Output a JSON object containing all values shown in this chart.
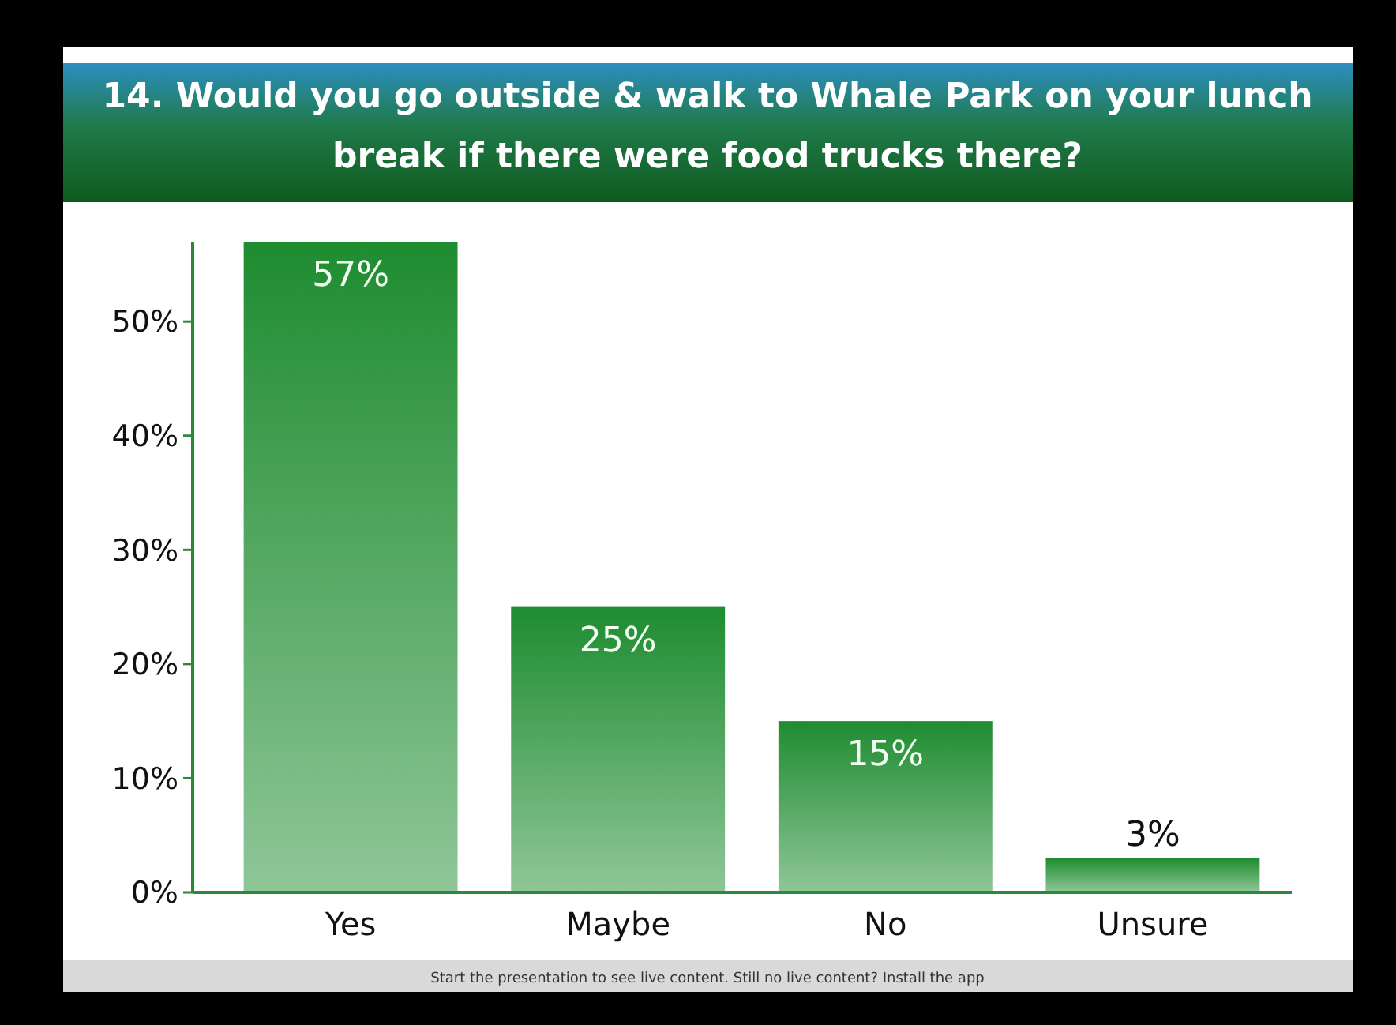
{
  "chart_data": {
    "type": "bar",
    "title": "14. Would you go outside & walk to Whale Park on your lunch break if there were food trucks there?",
    "categories": [
      "Yes",
      "Maybe",
      "No",
      "Unsure"
    ],
    "values": [
      57,
      25,
      15,
      3
    ],
    "value_labels": [
      "57%",
      "25%",
      "15%",
      "3%"
    ],
    "color": "#1e8c30",
    "ylim": [
      0,
      57
    ],
    "yticks": [
      {
        "value": 0,
        "label": "0%"
      },
      {
        "value": 10,
        "label": "10%"
      },
      {
        "value": 20,
        "label": "20%"
      },
      {
        "value": 30,
        "label": "30%"
      },
      {
        "value": 40,
        "label": "40%"
      },
      {
        "value": 50,
        "label": "50%"
      }
    ],
    "grid": false,
    "annotations": [
      "Start the presentation to see live content. Still no live content? Install the app"
    ]
  }
}
